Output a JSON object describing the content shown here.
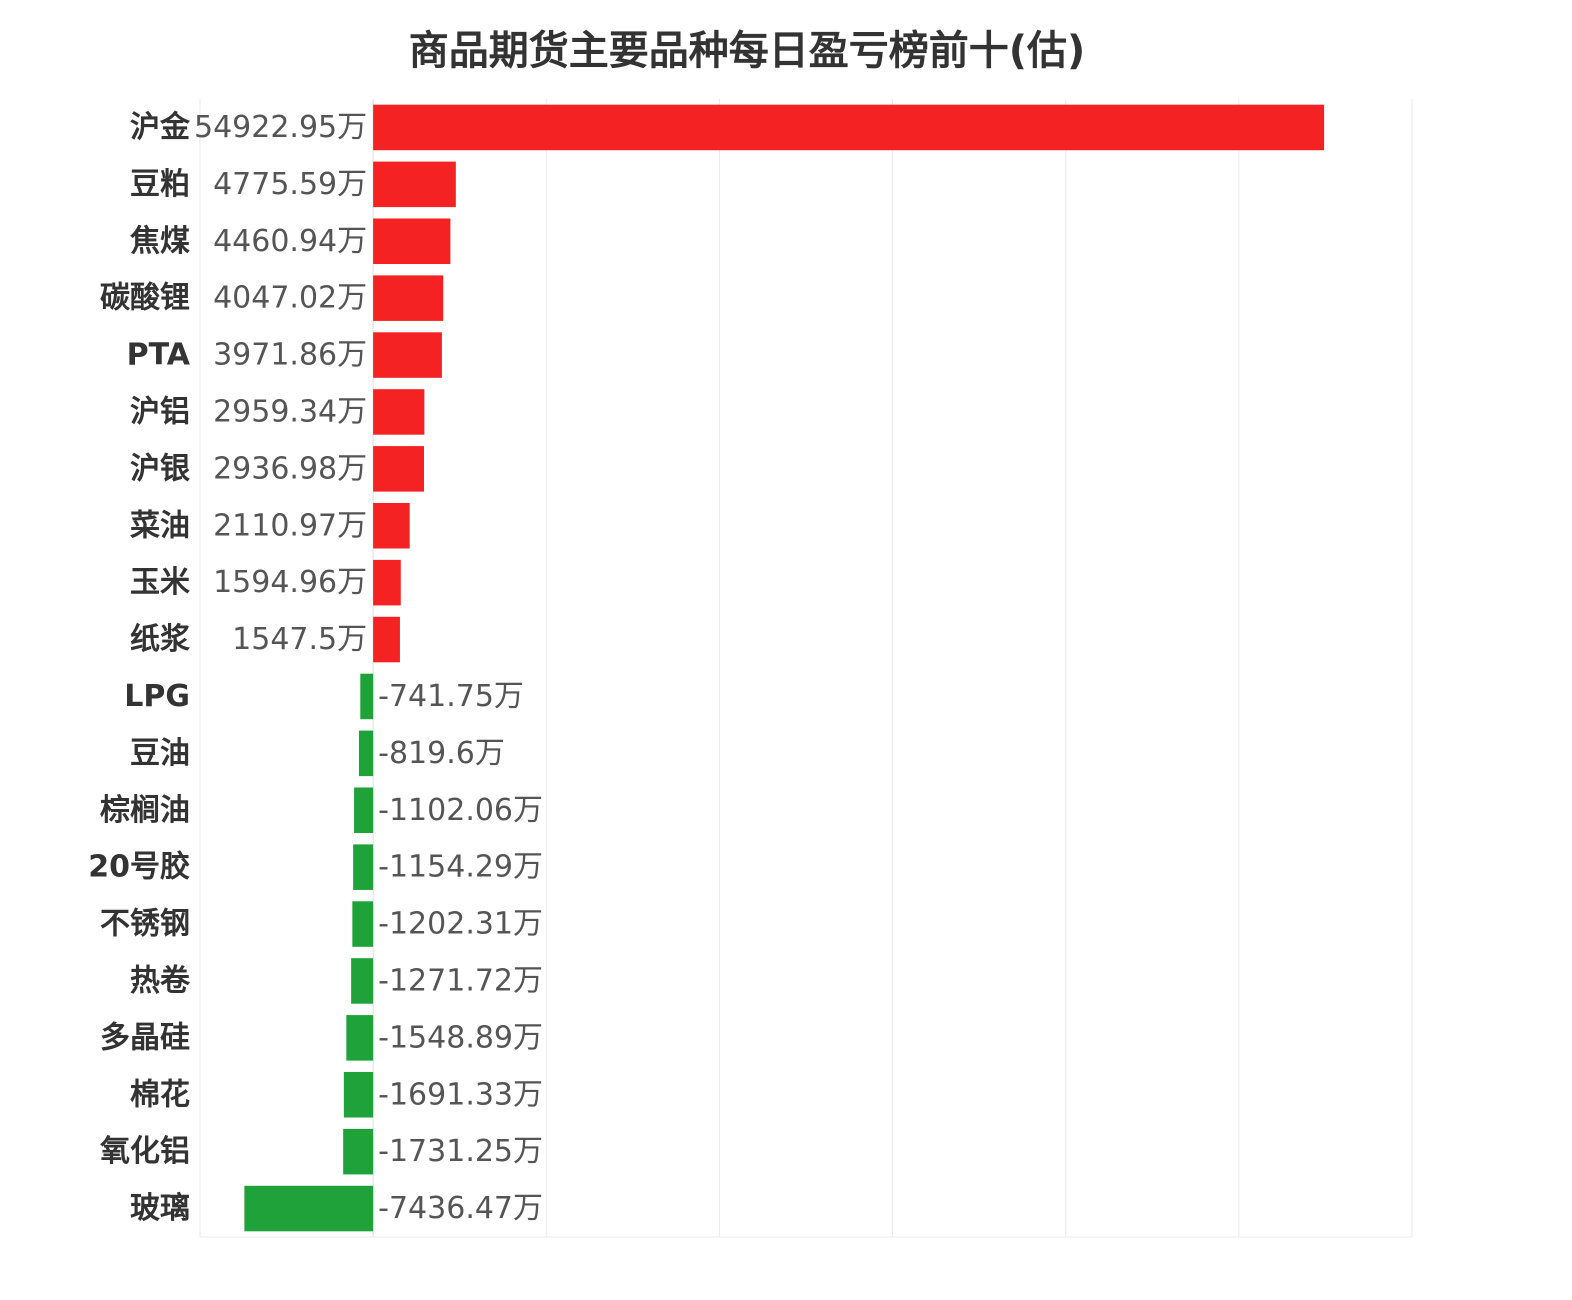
{
  "chart_data": {
    "type": "bar",
    "orientation": "horizontal",
    "title": "商品期货主要品种每日盈亏榜前十(估)",
    "value_suffix": "万",
    "grid": true,
    "xlim": [
      -10000,
      60000
    ],
    "colors": {
      "positive": "#f42222",
      "negative": "#1fa23a"
    },
    "categories": [
      "沪金",
      "豆粕",
      "焦煤",
      "碳酸锂",
      "PTA",
      "沪铝",
      "沪银",
      "菜油",
      "玉米",
      "纸浆",
      "LPG",
      "豆油",
      "棕榈油",
      "20号胶",
      "不锈钢",
      "热卷",
      "多晶硅",
      "棉花",
      "氧化铝",
      "玻璃"
    ],
    "values": [
      54922.95,
      4775.59,
      4460.94,
      4047.02,
      3971.86,
      2959.34,
      2936.98,
      2110.97,
      1594.96,
      1547.5,
      -741.75,
      -819.6,
      -1102.06,
      -1154.29,
      -1202.31,
      -1271.72,
      -1548.89,
      -1691.33,
      -1731.25,
      -7436.47
    ]
  }
}
